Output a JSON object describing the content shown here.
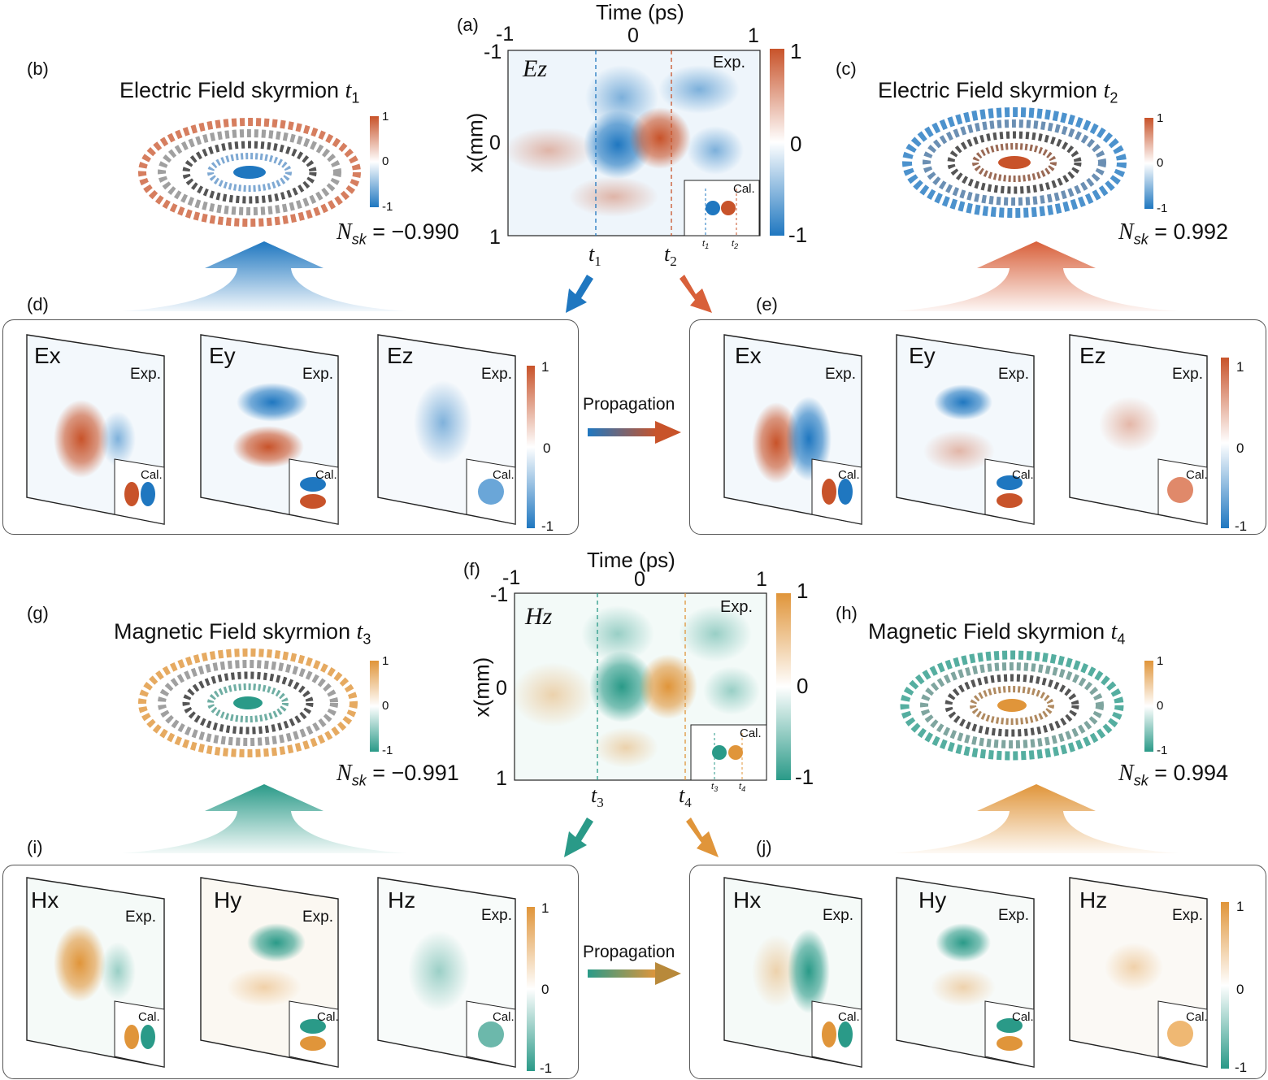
{
  "panel_labels": {
    "a": "(a)",
    "b": "(b)",
    "c": "(c)",
    "d": "(d)",
    "e": "(e)",
    "f": "(f)",
    "g": "(g)",
    "h": "(h)",
    "i": "(i)",
    "j": "(j)"
  },
  "time_axis": {
    "label": "Time (ps)",
    "ticks": [
      "-1",
      "0",
      "1"
    ]
  },
  "x_axis": {
    "label": "x(mm)",
    "ticks": [
      "-1",
      "0",
      "1"
    ]
  },
  "colorbar_large": {
    "max": "1",
    "mid": "0",
    "min": "-1"
  },
  "colorbar_small": {
    "max": "1",
    "mid": "0",
    "min": "-1"
  },
  "exp_label": "Exp.",
  "cal_label": "Cal.",
  "top": {
    "field_name": "Ez",
    "t_first": {
      "base": "t",
      "sub": "1"
    },
    "t_second": {
      "base": "t",
      "sub": "2"
    },
    "skyrmion_left": {
      "title": "Electric Field skyrmion ",
      "t_base": "t",
      "t_sub": "1",
      "nsk_base": "N",
      "nsk_sub": "sk",
      "nsk_value": " = −0.990"
    },
    "skyrmion_right": {
      "title": "Electric Field skyrmion ",
      "t_base": "t",
      "t_sub": "2",
      "nsk_base": "N",
      "nsk_sub": "sk",
      "nsk_value": " = 0.992"
    },
    "maps": [
      "Ex",
      "Ey",
      "Ez"
    ],
    "propagation": "Propagation"
  },
  "bottom": {
    "field_name": "Hz",
    "t_first": {
      "base": "t",
      "sub": "3"
    },
    "t_second": {
      "base": "t",
      "sub": "4"
    },
    "skyrmion_left": {
      "title": "Magnetic Field skyrmion ",
      "t_base": "t",
      "t_sub": "3",
      "nsk_base": "N",
      "nsk_sub": "sk",
      "nsk_value": " = −0.991"
    },
    "skyrmion_right": {
      "title": "Magnetic Field skyrmion ",
      "t_base": "t",
      "t_sub": "4",
      "nsk_base": "N",
      "nsk_sub": "sk",
      "nsk_value": " = 0.994"
    },
    "maps": [
      "Hx",
      "Hy",
      "Hz"
    ],
    "propagation": "Propagation"
  },
  "colors": {
    "electric_pos": "#c8532a",
    "electric_neg": "#1f77c0",
    "magnetic_pos": "#e0953a",
    "magnetic_neg": "#2a9a88"
  }
}
